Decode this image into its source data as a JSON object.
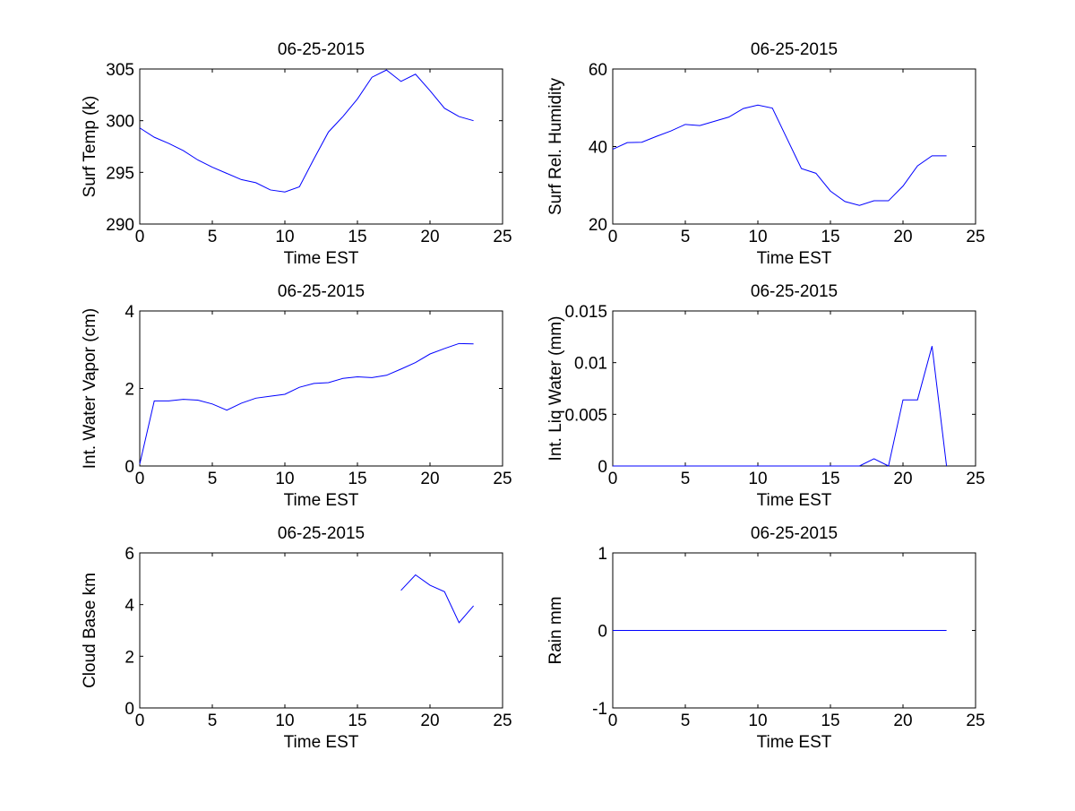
{
  "figure": {
    "background": "#ffffff",
    "line_color": "#0000ff"
  },
  "chart_data": [
    {
      "type": "line",
      "title": "06-25-2015",
      "xlabel": "Time EST",
      "ylabel": "Surf Temp (k)",
      "xlim": [
        0,
        25
      ],
      "ylim": [
        290,
        305
      ],
      "xticks": [
        "0",
        "5",
        "10",
        "15",
        "20",
        "25"
      ],
      "yticks": [
        "290",
        "295",
        "300",
        "305"
      ],
      "grid": false,
      "series": [
        {
          "x": [
            0,
            1,
            2,
            3,
            4,
            5,
            6,
            7,
            8,
            9,
            10,
            11,
            12,
            13,
            14,
            15,
            16,
            17,
            18,
            19,
            20,
            21,
            22,
            23
          ],
          "y": [
            299.3,
            298.4,
            297.8,
            297.1,
            296.2,
            295.5,
            294.9,
            294.3,
            294.0,
            293.3,
            293.1,
            293.6,
            296.3,
            298.9,
            300.4,
            302.1,
            304.2,
            304.9,
            303.8,
            304.5,
            302.9,
            301.2,
            300.4,
            300.0
          ]
        }
      ]
    },
    {
      "type": "line",
      "title": "06-25-2015",
      "xlabel": "Time EST",
      "ylabel": "Surf Rel. Humidity",
      "xlim": [
        0,
        25
      ],
      "ylim": [
        20,
        60
      ],
      "xticks": [
        "0",
        "5",
        "10",
        "15",
        "20",
        "25"
      ],
      "yticks": [
        "20",
        "40",
        "60"
      ],
      "grid": false,
      "series": [
        {
          "x": [
            0,
            1,
            2,
            3,
            4,
            5,
            6,
            7,
            8,
            9,
            10,
            11,
            12,
            13,
            14,
            15,
            16,
            17,
            18,
            19,
            20,
            21,
            22,
            23
          ],
          "y": [
            39.3,
            41.0,
            41.1,
            42.6,
            44.0,
            45.7,
            45.4,
            46.5,
            47.6,
            49.8,
            50.7,
            49.9,
            42.1,
            34.3,
            33.1,
            28.5,
            25.8,
            24.8,
            26.0,
            26.0,
            29.8,
            35.0,
            37.6,
            37.6
          ]
        }
      ]
    },
    {
      "type": "line",
      "title": "06-25-2015",
      "xlabel": "Time EST",
      "ylabel": "Int. Water Vapor (cm)",
      "xlim": [
        0,
        25
      ],
      "ylim": [
        0,
        4
      ],
      "xticks": [
        "0",
        "5",
        "10",
        "15",
        "20",
        "25"
      ],
      "yticks": [
        "0",
        "2",
        "4"
      ],
      "grid": false,
      "series": [
        {
          "x": [
            0,
            1,
            2,
            3,
            4,
            5,
            6,
            7,
            8,
            9,
            10,
            11,
            12,
            13,
            14,
            15,
            16,
            17,
            18,
            19,
            20,
            21,
            22,
            23
          ],
          "y": [
            0.05,
            1.68,
            1.68,
            1.72,
            1.7,
            1.6,
            1.44,
            1.62,
            1.75,
            1.8,
            1.85,
            2.03,
            2.13,
            2.15,
            2.26,
            2.3,
            2.28,
            2.34,
            2.5,
            2.67,
            2.89,
            3.03,
            3.16,
            3.15
          ]
        }
      ]
    },
    {
      "type": "line",
      "title": "06-25-2015",
      "xlabel": "Time EST",
      "ylabel": "Int. Liq Water (mm)",
      "xlim": [
        0,
        25
      ],
      "ylim": [
        0,
        0.015
      ],
      "xticks": [
        "0",
        "5",
        "10",
        "15",
        "20",
        "25"
      ],
      "yticks": [
        "0",
        "0.005",
        "0.01",
        "0.015"
      ],
      "grid": false,
      "series": [
        {
          "x": [
            0,
            1,
            2,
            3,
            4,
            5,
            6,
            7,
            8,
            9,
            10,
            11,
            12,
            13,
            14,
            15,
            16,
            17,
            18,
            19,
            20,
            21,
            22,
            23
          ],
          "y": [
            0,
            0,
            0,
            0,
            0,
            0,
            0,
            0,
            0,
            0,
            0,
            0,
            0,
            0,
            0,
            0,
            0,
            0,
            0.0007,
            0,
            0.0064,
            0.0064,
            0.0116,
            0
          ]
        }
      ]
    },
    {
      "type": "line",
      "title": "06-25-2015",
      "xlabel": "Time EST",
      "ylabel": "Cloud Base km",
      "xlim": [
        0,
        25
      ],
      "ylim": [
        0,
        6
      ],
      "xticks": [
        "0",
        "5",
        "10",
        "15",
        "20",
        "25"
      ],
      "yticks": [
        "0",
        "2",
        "4",
        "6"
      ],
      "grid": false,
      "series": [
        {
          "x": [
            18,
            19,
            20,
            21,
            22,
            23
          ],
          "y": [
            4.55,
            5.15,
            4.75,
            4.5,
            3.3,
            3.95
          ]
        }
      ]
    },
    {
      "type": "line",
      "title": "06-25-2015",
      "xlabel": "Time EST",
      "ylabel": "Rain mm",
      "xlim": [
        0,
        25
      ],
      "ylim": [
        -1,
        1
      ],
      "xticks": [
        "0",
        "5",
        "10",
        "15",
        "20",
        "25"
      ],
      "yticks": [
        "-1",
        "0",
        "1"
      ],
      "grid": false,
      "series": [
        {
          "x": [
            0,
            1,
            2,
            3,
            4,
            5,
            6,
            7,
            8,
            9,
            10,
            11,
            12,
            13,
            14,
            15,
            16,
            17,
            18,
            19,
            20,
            21,
            22,
            23
          ],
          "y": [
            0,
            0,
            0,
            0,
            0,
            0,
            0,
            0,
            0,
            0,
            0,
            0,
            0,
            0,
            0,
            0,
            0,
            0,
            0,
            0,
            0,
            0,
            0,
            0
          ]
        }
      ]
    }
  ]
}
